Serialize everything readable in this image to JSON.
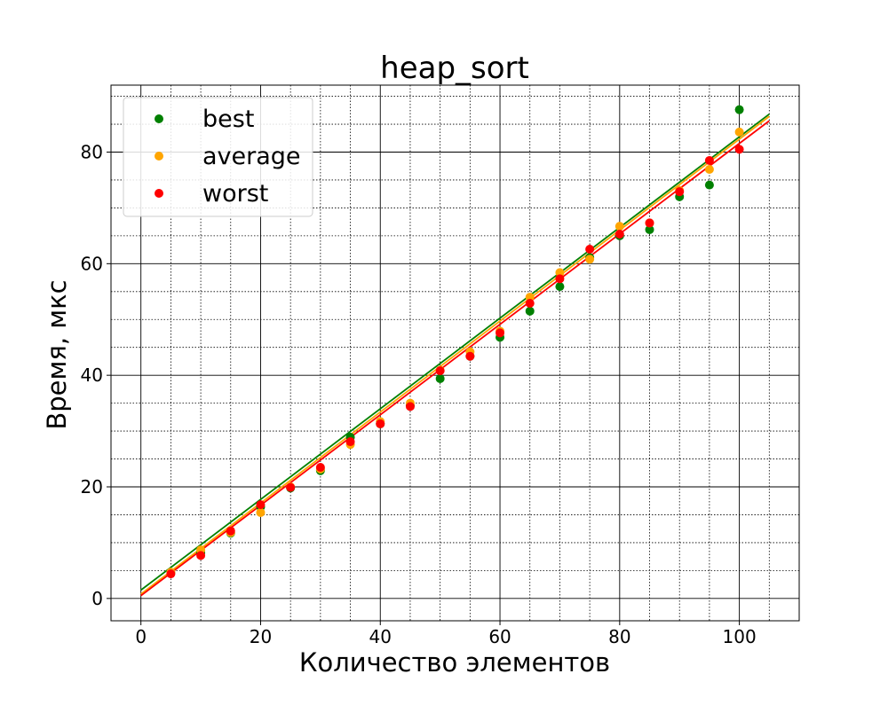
{
  "chart_data": {
    "type": "scatter",
    "title": "heap_sort",
    "xlabel": "Количество элементов",
    "ylabel": "Время, мкс",
    "xlim": [
      -5,
      110
    ],
    "ylim": [
      -4,
      92
    ],
    "x_ticks": [
      0,
      20,
      40,
      60,
      80,
      100
    ],
    "y_ticks": [
      0,
      20,
      40,
      60,
      80
    ],
    "x_minor_step": 5,
    "y_minor_step": 5,
    "grid": true,
    "legend_position": "top-left",
    "x": [
      5,
      10,
      15,
      20,
      25,
      30,
      35,
      40,
      45,
      50,
      55,
      60,
      65,
      70,
      75,
      80,
      85,
      90,
      95,
      100
    ],
    "series": [
      {
        "name": "best",
        "color": "#008000",
        "values": [
          4.6,
          8.2,
          11.7,
          16.4,
          19.8,
          22.9,
          28.9,
          31.3,
          34.6,
          39.4,
          43.4,
          46.8,
          51.5,
          55.9,
          61.1,
          65.0,
          66.1,
          72.0,
          74.1,
          87.6
        ],
        "fit": {
          "x": [
            0,
            105
          ],
          "y": [
            1.5,
            86.8
          ]
        }
      },
      {
        "name": "average",
        "color": "#ffa500",
        "values": [
          4.7,
          8.7,
          11.8,
          15.4,
          20.0,
          23.2,
          27.6,
          31.7,
          35.0,
          40.9,
          44.2,
          47.9,
          54.0,
          58.4,
          60.8,
          66.7,
          67.3,
          73.1,
          76.9,
          83.6
        ],
        "fit": {
          "x": [
            0,
            105
          ],
          "y": [
            0.8,
            86.4
          ]
        }
      },
      {
        "name": "worst",
        "color": "#ff0000",
        "values": [
          4.4,
          7.7,
          12.1,
          16.8,
          19.9,
          23.5,
          28.1,
          31.3,
          34.4,
          40.8,
          43.4,
          47.6,
          52.9,
          57.3,
          62.6,
          65.3,
          67.3,
          72.9,
          78.5,
          80.5
        ],
        "fit": {
          "x": [
            0,
            105
          ],
          "y": [
            0.5,
            85.6
          ]
        }
      }
    ]
  }
}
